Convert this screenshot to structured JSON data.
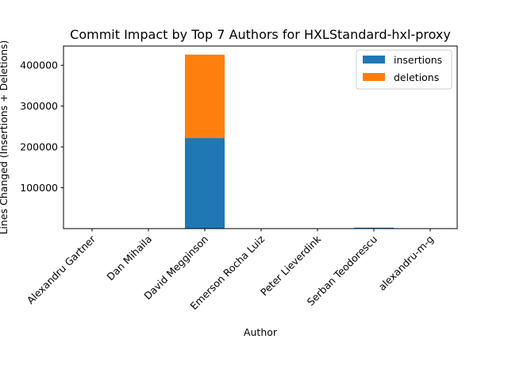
{
  "chart_data": {
    "type": "bar",
    "stacked": true,
    "title": "Commit Impact by Top 7 Authors for HXLStandard-hxl-proxy",
    "xlabel": "Author",
    "ylabel": "Lines Changed (Insertions + Deletions)",
    "categories": [
      "Alexandru Gartner",
      "Dan Mihaila",
      "David Megginson",
      "Emerson Rocha Luiz",
      "Peter Lieverdink",
      "Serban Teodorescu",
      "alexandru-m-g"
    ],
    "series": [
      {
        "name": "insertions",
        "color": "#1f77b4",
        "values": [
          150,
          60,
          221500,
          40,
          20,
          1800,
          80
        ]
      },
      {
        "name": "deletions",
        "color": "#ff7f0e",
        "values": [
          90,
          30,
          204500,
          20,
          10,
          900,
          40
        ]
      }
    ],
    "yticks": [
      100000,
      200000,
      300000,
      400000
    ],
    "ytick_labels": [
      "100000",
      "200000",
      "300000",
      "400000"
    ],
    "ylim": [
      0,
      447000
    ],
    "grid": false,
    "legend_position": "top-right"
  }
}
